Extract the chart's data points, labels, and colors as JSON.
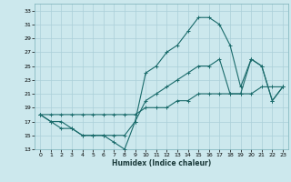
{
  "xlabel": "Humidex (Indice chaleur)",
  "ylabel": "",
  "bg_color": "#cce8ed",
  "grid_color": "#aacfd8",
  "line_color": "#1a6b6b",
  "xlim": [
    -0.5,
    23.5
  ],
  "ylim": [
    13,
    34
  ],
  "xticks": [
    0,
    1,
    2,
    3,
    4,
    5,
    6,
    7,
    8,
    9,
    10,
    11,
    12,
    13,
    14,
    15,
    16,
    17,
    18,
    19,
    20,
    21,
    22,
    23
  ],
  "yticks": [
    13,
    15,
    17,
    19,
    21,
    23,
    25,
    27,
    29,
    31,
    33
  ],
  "line1_x": [
    0,
    1,
    2,
    3,
    4,
    5,
    6,
    7,
    8,
    9,
    10,
    11,
    12,
    13,
    14,
    15,
    16,
    17,
    18,
    19,
    20,
    21,
    22,
    23
  ],
  "line1_y": [
    18,
    17,
    16,
    16,
    15,
    15,
    15,
    14,
    13,
    17,
    24,
    25,
    27,
    28,
    30,
    32,
    32,
    31,
    28,
    22,
    26,
    25,
    20,
    22
  ],
  "line2_x": [
    0,
    1,
    2,
    3,
    4,
    5,
    6,
    7,
    8,
    9,
    10,
    11,
    12,
    13,
    14,
    15,
    16,
    17,
    18,
    19,
    20,
    21,
    22,
    23
  ],
  "line2_y": [
    18,
    17,
    17,
    16,
    15,
    15,
    15,
    15,
    15,
    17,
    20,
    21,
    22,
    23,
    24,
    25,
    25,
    26,
    21,
    21,
    26,
    25,
    20,
    22
  ],
  "line3_x": [
    0,
    1,
    2,
    3,
    4,
    5,
    6,
    7,
    8,
    9,
    10,
    11,
    12,
    13,
    14,
    15,
    16,
    17,
    18,
    19,
    20,
    21,
    22,
    23
  ],
  "line3_y": [
    18,
    18,
    18,
    18,
    18,
    18,
    18,
    18,
    18,
    18,
    19,
    19,
    19,
    20,
    20,
    21,
    21,
    21,
    21,
    21,
    21,
    22,
    22,
    22
  ]
}
